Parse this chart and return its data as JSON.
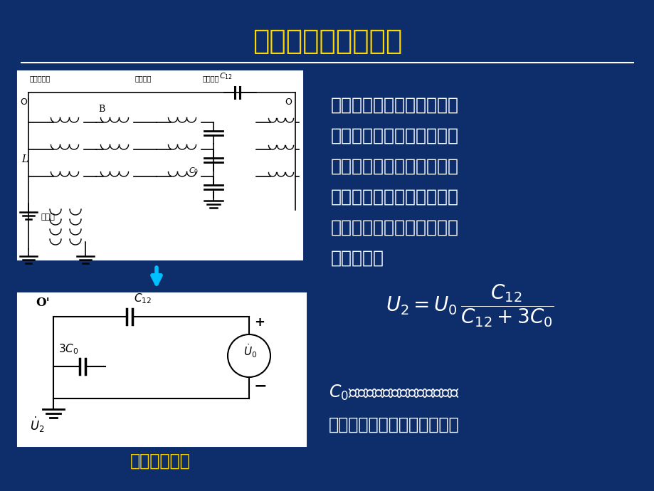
{
  "title": "绕组间的传递过电压",
  "bg_color": "#0d2d6b",
  "title_color": "#FFD700",
  "text_color": "#ffffff",
  "title_fontsize": 28,
  "body_text": [
    "在系统不正常时，中性点不",
    "接地变压器产生的中性点位",
    "移电压，即工频零序电压，",
    "通过绕组之间电容传递到低",
    "压侧，使整个低压系统的对",
    "地电位提高"
  ],
  "bottom_label": "静电传递回路",
  "c0_text1": "低压绕阻在内的每相对地电容"
}
